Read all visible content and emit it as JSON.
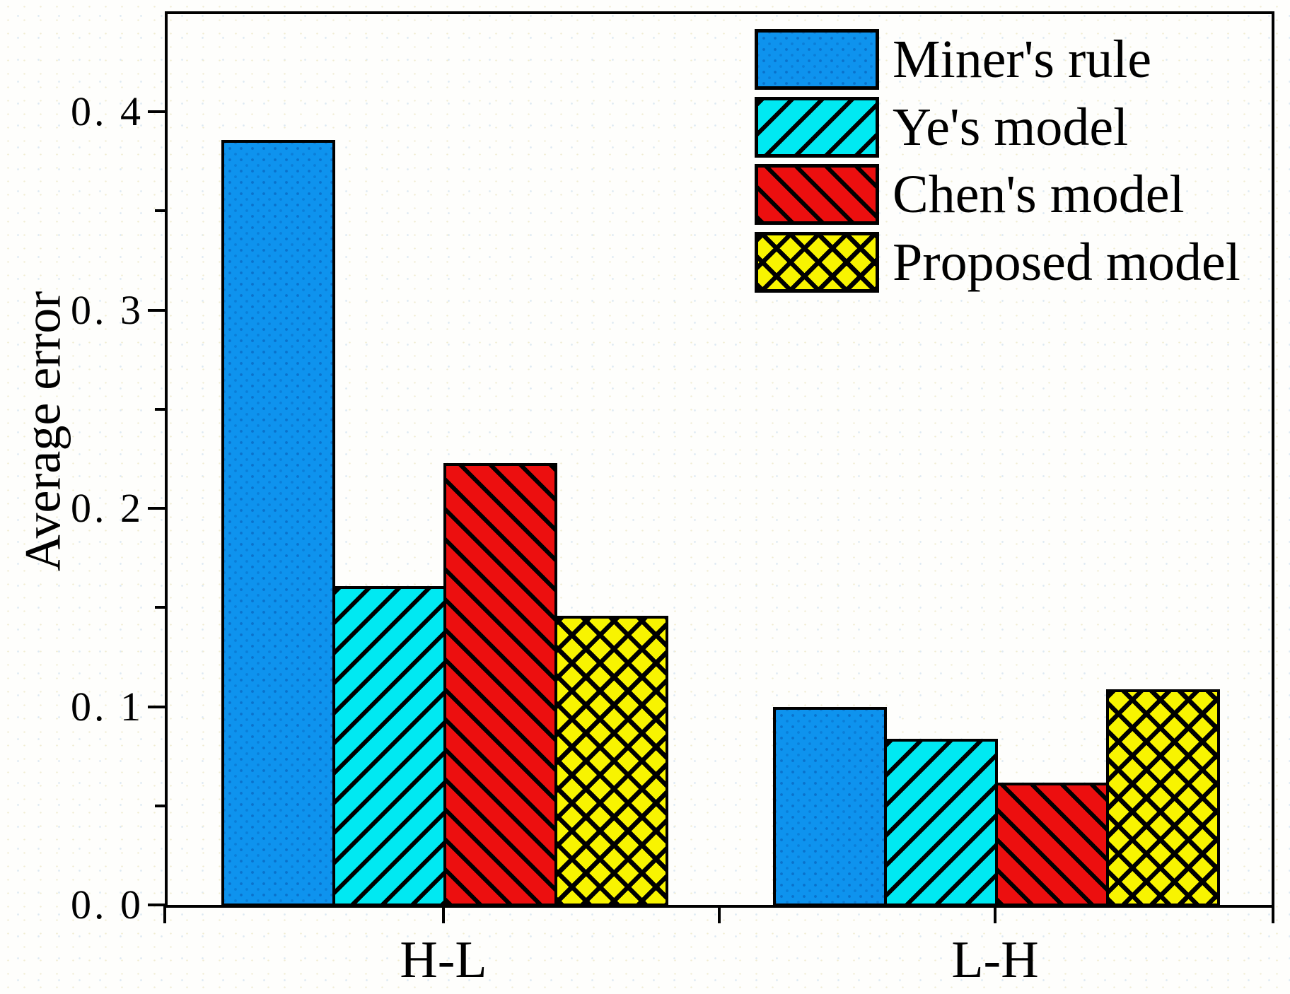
{
  "chart_data": {
    "type": "bar",
    "title": "",
    "xlabel": "",
    "ylabel": "Average error",
    "categories": [
      "H-L",
      "L-H"
    ],
    "series": [
      {
        "name": "Miner's rule",
        "values": [
          0.385,
          0.099
        ],
        "color": "#0e93ee",
        "pattern": "solid-dotted"
      },
      {
        "name": "Ye's model",
        "values": [
          0.16,
          0.083
        ],
        "color": "#00e9f2",
        "pattern": "diagonal-forward"
      },
      {
        "name": "Chen's model",
        "values": [
          0.222,
          0.061
        ],
        "color": "#ec0f0f",
        "pattern": "diagonal-backward"
      },
      {
        "name": "Proposed model",
        "values": [
          0.145,
          0.108
        ],
        "color": "#f8f400",
        "pattern": "crosshatch"
      }
    ],
    "ylim": [
      0,
      0.45
    ],
    "yticks_major": [
      0.0,
      0.1,
      0.2,
      0.3,
      0.4
    ],
    "ytick_labels": [
      "0. 0",
      "0. 1",
      "0. 2",
      "0. 3",
      "0. 4"
    ],
    "yticks_minor": [
      0.05,
      0.15,
      0.25,
      0.35
    ],
    "grid": false,
    "legend_position": "top-right",
    "axis_color": "#000000",
    "background_color": "#ffffff"
  }
}
